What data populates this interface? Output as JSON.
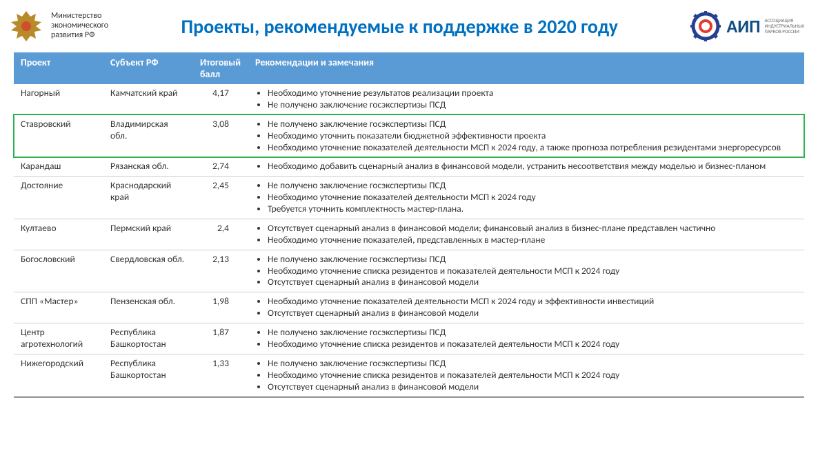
{
  "header": {
    "ministry_line1": "Министерство",
    "ministry_line2": "экономического",
    "ministry_line3": "развития РФ",
    "title": "Проекты, рекомендуемые к поддержке в 2020 году",
    "aip_label": "АИП",
    "aip_sub1": "АССОЦИАЦИЯ",
    "aip_sub2": "ИНДУСТРИАЛЬНЫХ",
    "aip_sub3": "ПАРКОВ РОССИИ",
    "emblem_fill": "#b88a2a",
    "gear_outer": "#25408f",
    "gear_inner": "#e03c31"
  },
  "table": {
    "headers": {
      "project": "Проект",
      "subject": "Субъект РФ",
      "score": "Итоговый балл",
      "notes": "Рекомендации и замечания"
    },
    "header_bg": "#5b9bd5",
    "header_fg": "#ffffff",
    "row_border": "#d0d0d0",
    "highlight_border": "#2bb24c",
    "text_color": "#333333",
    "rows": [
      {
        "project": "Нагорный",
        "subject": "Камчатский край",
        "score": "4,17",
        "highlight": false,
        "notes": [
          "Необходимо уточнение результатов реализации проекта",
          "Не получено заключение госэкспертизы ПСД"
        ]
      },
      {
        "project": "Ставровский",
        "subject": "Владимирская обл.",
        "score": "3,08",
        "highlight": true,
        "notes": [
          "Не получено заключение госэкспертизы ПСД",
          "Необходимо уточнить показатели бюджетной эффективности проекта",
          "Необходимо уточнение показателей деятельности МСП к 2024 году, а также прогноза потребления резидентами энергоресурсов"
        ]
      },
      {
        "project": "Карандаш",
        "subject": "Рязанская обл.",
        "score": "2,74",
        "highlight": false,
        "notes": [
          "Необходимо добавить сценарный анализ в финансовой модели, устранить несоответствия между моделью и бизнес-планом"
        ]
      },
      {
        "project": "Достояние",
        "subject": "Краснодарский край",
        "score": "2,45",
        "highlight": false,
        "notes": [
          "Не получено заключение госэкспертизы ПСД",
          "Необходимо уточнение показателей деятельности МСП к 2024 году",
          "Требуется уточнить комплектность мастер-плана."
        ]
      },
      {
        "project": "Култаево",
        "subject": "Пермский край",
        "score": "2,4",
        "highlight": false,
        "notes": [
          "Отсутствует сценарный анализ в финансовой модели; финансовый анализ в бизнес-плане представлен частично",
          "Необходимо уточнение показателей, представленных в мастер-плане"
        ]
      },
      {
        "project": "Богословский",
        "subject": "Свердловская обл.",
        "score": "2,13",
        "highlight": false,
        "notes": [
          "Не получено заключение госэкспертизы ПСД",
          "Необходимо уточнение списка резидентов и показателей деятельности МСП к 2024 году",
          "Отсутствует сценарный анализ в финансовой модели"
        ]
      },
      {
        "project": "СПП «Мастер»",
        "subject": "Пензенская обл.",
        "score": "1,98",
        "highlight": false,
        "notes": [
          "Необходимо уточнение показателей деятельности МСП к 2024 году и эффективности инвестиций",
          "Отсутствует сценарный анализ в финансовой модели"
        ]
      },
      {
        "project": "Центр агротехнологий",
        "subject": "Республика Башкортостан",
        "score": "1,87",
        "highlight": false,
        "notes": [
          "Не получено заключение госэкспертизы ПСД",
          "Необходимо уточнение списка резидентов и показателей деятельности МСП к 2024 году"
        ]
      },
      {
        "project": "Нижегородский",
        "subject": "Республика Башкортостан",
        "score": "1,33",
        "highlight": false,
        "notes": [
          "Не получено заключение госэкспертизы ПСД",
          "Необходимо уточнение списка резидентов и показателей деятельности МСП к 2024 году",
          "Отсутствует сценарный анализ в финансовой модели"
        ]
      }
    ]
  }
}
